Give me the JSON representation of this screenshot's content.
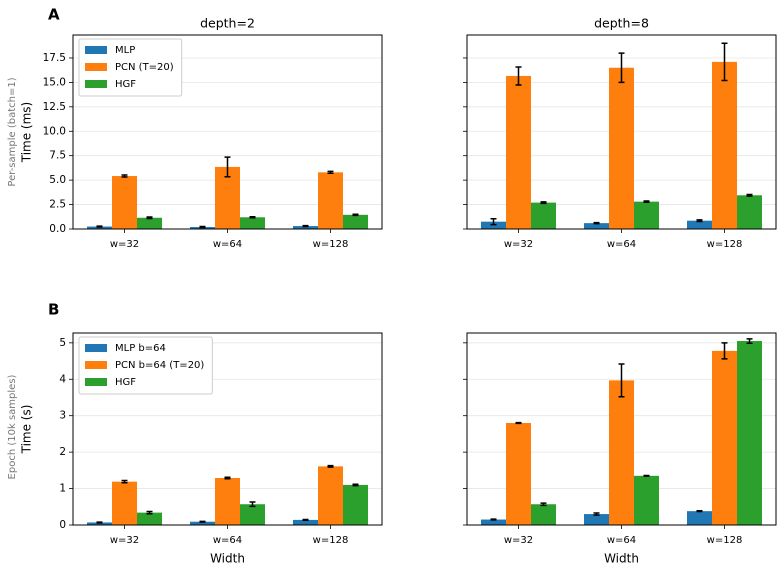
{
  "panel_labels": [
    "A",
    "B"
  ],
  "row_labels": [
    "Per-sample (batch=1)",
    "Epoch (10k samples)"
  ],
  "chart_data": [
    {
      "type": "bar",
      "title": "depth=2",
      "ylabel": "Time (ms)",
      "categories": [
        "w=32",
        "w=64",
        "w=128"
      ],
      "ylim": [
        0,
        19.85
      ],
      "yticks": [
        {
          "value": 0,
          "label": "0.0"
        },
        {
          "value": 2.5,
          "label": "2.5"
        },
        {
          "value": 5,
          "label": "5.0"
        },
        {
          "value": 7.5,
          "label": "7.5"
        },
        {
          "value": 10,
          "label": "10.0"
        },
        {
          "value": 12.5,
          "label": "12.5"
        },
        {
          "value": 15,
          "label": "15.0"
        },
        {
          "value": 17.5,
          "label": "17.5"
        }
      ],
      "grid": true,
      "legend": "upper left",
      "series": [
        {
          "name": "MLP",
          "color": "#1f77b4",
          "values": [
            0.25,
            0.2,
            0.3
          ],
          "errors": [
            0.05,
            0.05,
            0.05
          ]
        },
        {
          "name": "PCN (T=20)",
          "color": "#ff7f0e",
          "values": [
            5.42,
            6.35,
            5.8
          ],
          "errors": [
            0.1,
            1.0,
            0.1
          ]
        },
        {
          "name": "HGF",
          "color": "#2ca02c",
          "values": [
            1.15,
            1.2,
            1.45
          ],
          "errors": [
            0.08,
            0.05,
            0.06
          ]
        }
      ]
    },
    {
      "type": "bar",
      "title": "depth=8",
      "categories": [
        "w=32",
        "w=64",
        "w=128"
      ],
      "ylim": [
        0,
        19.85
      ],
      "sharey": true,
      "grid": true,
      "series": [
        {
          "color": "#1f77b4",
          "values": [
            0.75,
            0.6,
            0.85
          ],
          "errors": [
            0.3,
            0.05,
            0.08
          ]
        },
        {
          "color": "#ff7f0e",
          "values": [
            15.66,
            16.5,
            17.1
          ],
          "errors": [
            0.92,
            1.5,
            1.9
          ]
        },
        {
          "color": "#2ca02c",
          "values": [
            2.7,
            2.8,
            3.45
          ],
          "errors": [
            0.08,
            0.06,
            0.08
          ]
        }
      ]
    },
    {
      "type": "bar",
      "ylabel": "Time (s)",
      "xlabel": "Width",
      "categories": [
        "w=32",
        "w=64",
        "w=128"
      ],
      "ylim": [
        0,
        5.27
      ],
      "yticks": [
        0,
        1,
        2,
        3,
        4,
        5
      ],
      "grid": true,
      "legend": "upper left",
      "series": [
        {
          "name": "MLP b=64",
          "color": "#1f77b4",
          "values": [
            0.07,
            0.09,
            0.14
          ],
          "errors": [
            0.01,
            0.01,
            0.01
          ]
        },
        {
          "name": "PCN b=64 (T=20)",
          "color": "#ff7f0e",
          "values": [
            1.19,
            1.29,
            1.61
          ],
          "errors": [
            0.03,
            0.02,
            0.02
          ]
        },
        {
          "name": "HGF",
          "color": "#2ca02c",
          "values": [
            0.34,
            0.57,
            1.1
          ],
          "errors": [
            0.03,
            0.06,
            0.02
          ]
        }
      ]
    },
    {
      "type": "bar",
      "xlabel": "Width",
      "categories": [
        "w=32",
        "w=64",
        "w=128"
      ],
      "ylim": [
        0,
        5.27
      ],
      "sharey": true,
      "grid": true,
      "series": [
        {
          "color": "#1f77b4",
          "values": [
            0.15,
            0.3,
            0.38
          ],
          "errors": [
            0.01,
            0.03,
            0.01
          ]
        },
        {
          "color": "#ff7f0e",
          "values": [
            2.8,
            3.97,
            4.78
          ],
          "errors": [
            0.01,
            0.45,
            0.22
          ]
        },
        {
          "color": "#2ca02c",
          "values": [
            0.57,
            1.35,
            5.05
          ],
          "errors": [
            0.03,
            0.01,
            0.06
          ]
        }
      ]
    }
  ]
}
